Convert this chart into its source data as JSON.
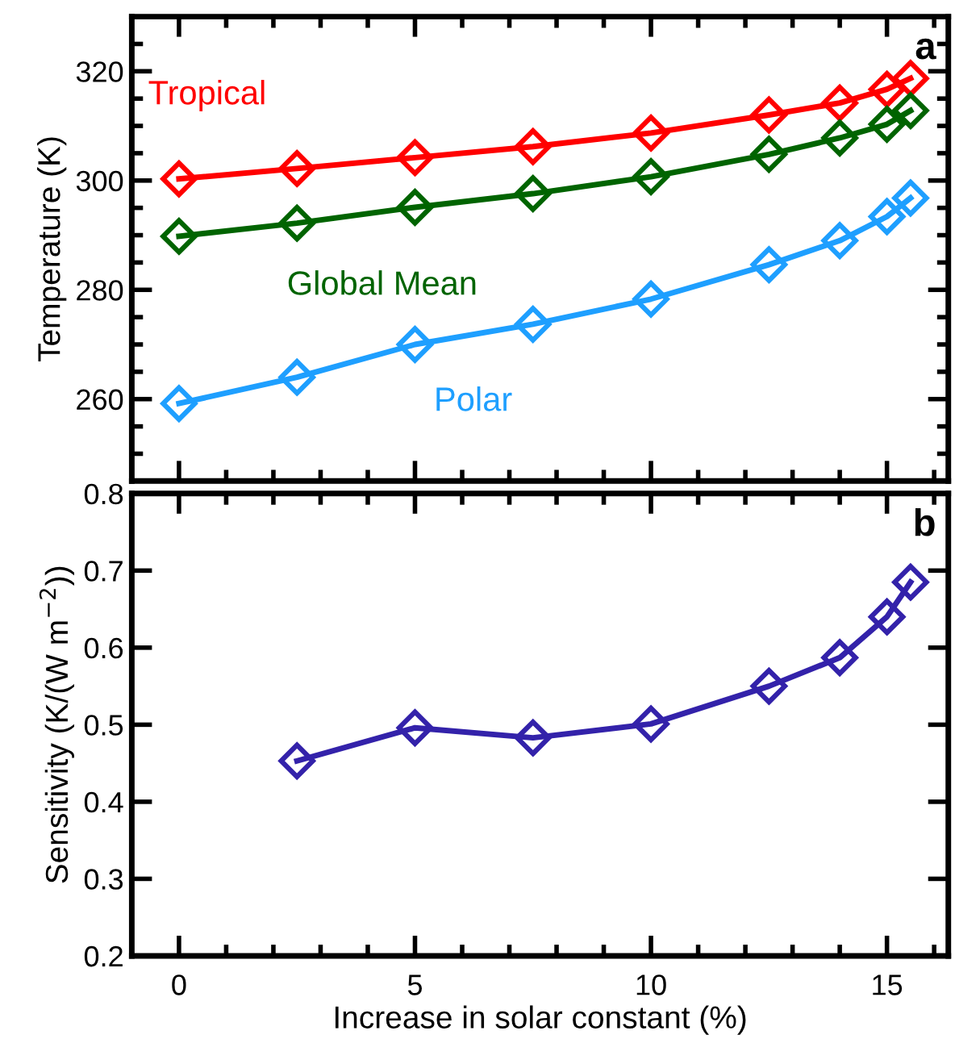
{
  "chart_data": [
    {
      "type": "line",
      "ylabel": "Temperature (K)",
      "annotations": [
        "a"
      ],
      "marker": "diamond",
      "line_style": "solid",
      "grid": false,
      "legend": false,
      "tick_labels": "y",
      "x": [
        0,
        2.5,
        5,
        7.5,
        10,
        12.5,
        14,
        15,
        15.5
      ],
      "xlim": [
        -1,
        16.3
      ],
      "xticks": [
        0,
        {
          "value": 1,
          "label": null
        },
        {
          "value": 2,
          "label": null
        },
        {
          "value": 3,
          "label": null
        },
        {
          "value": 4,
          "label": null
        },
        5,
        {
          "value": 6,
          "label": null
        },
        {
          "value": 7,
          "label": null
        },
        {
          "value": 8,
          "label": null
        },
        {
          "value": 9,
          "label": null
        },
        10,
        {
          "value": 11,
          "label": null
        },
        {
          "value": 12,
          "label": null
        },
        {
          "value": 13,
          "label": null
        },
        {
          "value": 14,
          "label": null
        },
        15,
        {
          "value": 16,
          "label": null
        }
      ],
      "ylim": [
        245,
        330
      ],
      "yticks": [
        {
          "value": 250,
          "label": null
        },
        {
          "value": 255,
          "label": null
        },
        260,
        {
          "value": 265,
          "label": null
        },
        {
          "value": 270,
          "label": null
        },
        {
          "value": 275,
          "label": null
        },
        280,
        {
          "value": 285,
          "label": null
        },
        {
          "value": 290,
          "label": null
        },
        {
          "value": 295,
          "label": null
        },
        300,
        {
          "value": 305,
          "label": null
        },
        {
          "value": 310,
          "label": null
        },
        {
          "value": 315,
          "label": null
        },
        320,
        {
          "value": 325,
          "label": null
        }
      ],
      "series": [
        {
          "name": "Tropical",
          "color": "#ff0000",
          "values": [
            300.3,
            302.2,
            304.2,
            306.2,
            308.7,
            312.0,
            314.2,
            316.7,
            318.7
          ]
        },
        {
          "name": "Global Mean",
          "color": "#006400",
          "values": [
            289.8,
            292.2,
            295.1,
            297.6,
            300.7,
            304.8,
            307.8,
            310.3,
            312.8
          ]
        },
        {
          "name": "Polar",
          "color": "#1e9fff",
          "values": [
            259.2,
            264.0,
            270.0,
            273.7,
            278.3,
            284.6,
            289.0,
            293.4,
            296.8
          ]
        }
      ]
    },
    {
      "type": "line",
      "xlabel": "Increase in solar constant (%)",
      "ylabel": "Sensitivity (K/(W m$^{−2}$))",
      "annotations": [
        "b"
      ],
      "marker": "diamond",
      "line_style": "solid",
      "grid": false,
      "legend": false,
      "x": [
        2.5,
        5,
        7.5,
        10,
        12.5,
        14,
        15,
        15.5
      ],
      "xlim": [
        -1,
        16.3
      ],
      "xticks": [
        0,
        {
          "value": 1,
          "label": null
        },
        {
          "value": 2,
          "label": null
        },
        {
          "value": 3,
          "label": null
        },
        {
          "value": 4,
          "label": null
        },
        5,
        {
          "value": 6,
          "label": null
        },
        {
          "value": 7,
          "label": null
        },
        {
          "value": 8,
          "label": null
        },
        {
          "value": 9,
          "label": null
        },
        10,
        {
          "value": 11,
          "label": null
        },
        {
          "value": 12,
          "label": null
        },
        {
          "value": 13,
          "label": null
        },
        {
          "value": 14,
          "label": null
        },
        15,
        {
          "value": 16,
          "label": null
        }
      ],
      "ylim": [
        0.2,
        0.8
      ],
      "yticks": [
        0.2,
        0.3,
        0.4,
        0.5,
        0.6,
        0.7,
        0.8
      ],
      "series": [
        {
          "color": "#3322aa",
          "values": [
            0.453,
            0.496,
            0.483,
            0.501,
            0.55,
            0.587,
            0.64,
            0.685
          ]
        }
      ]
    }
  ]
}
